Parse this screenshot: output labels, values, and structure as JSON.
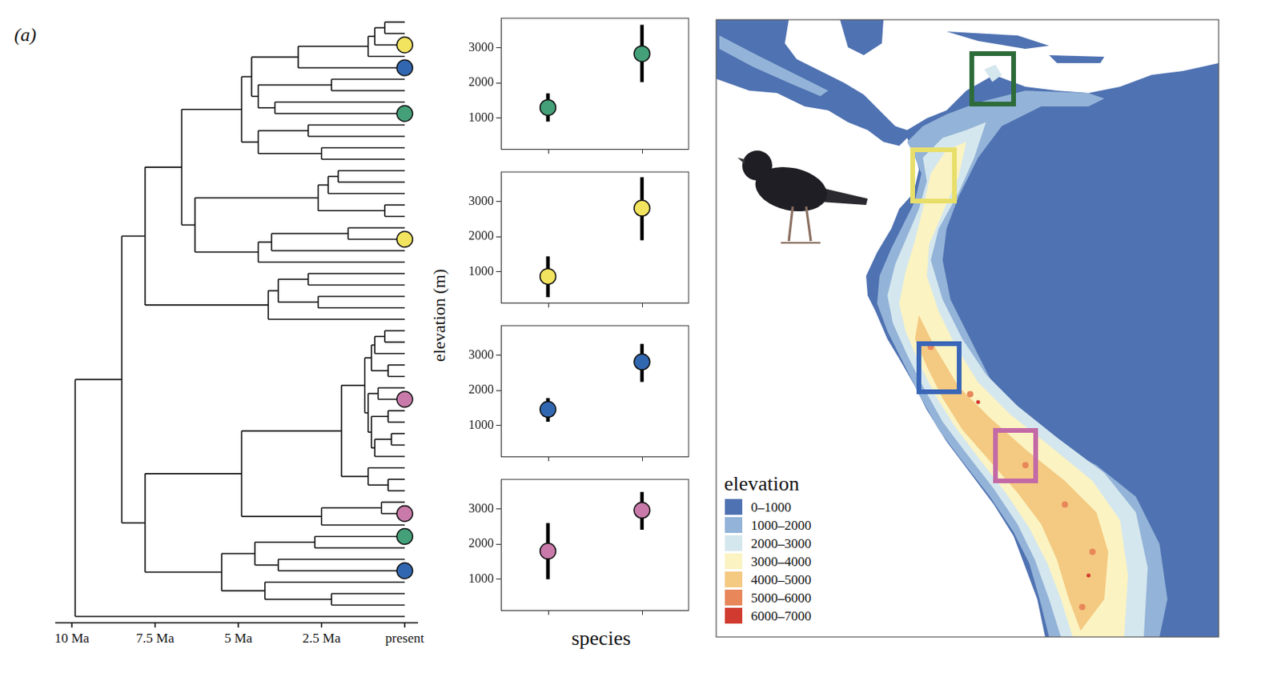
{
  "panel_label": "(a)",
  "tree": {
    "xlim": [
      10.5,
      -0.4
    ],
    "xticks": [
      {
        "value": 10,
        "label": "10 Ma"
      },
      {
        "value": 7.5,
        "label": "7.5 Ma"
      },
      {
        "value": 5,
        "label": "5 Ma"
      },
      {
        "value": 2.5,
        "label": "2.5 Ma"
      },
      {
        "value": 0,
        "label": "present"
      }
    ],
    "root": {
      "age": 9.9,
      "children": [
        {
          "age": 8.5,
          "children": [
            {
              "age": 7.8,
              "children": [
                {
                  "age": 6.7,
                  "children": [
                    {
                      "age": 4.9,
                      "children": [
                        {
                          "age": 4.6,
                          "children": [
                            {
                              "age": 3.2,
                              "children": [
                                {
                                  "age": 1.1,
                                  "children": [
                                    {
                                      "age": 0.9,
                                      "children": [
                                        {
                                          "age": 0.6,
                                          "children": [
                                            {
                                              "age": 0
                                            },
                                            {
                                              "age": 0
                                            }
                                          ]
                                        },
                                        {
                                          "age": 0,
                                          "color": "#f3e45f"
                                        }
                                      ]
                                    },
                                    {
                                      "age": 0
                                    }
                                  ]
                                },
                                {
                                  "age": 0,
                                  "color": "#3167b1"
                                }
                              ]
                            },
                            {
                              "age": 4.4,
                              "children": [
                                {
                                  "age": 2.2,
                                  "children": [
                                    {
                                      "age": 0
                                    },
                                    {
                                      "age": 0
                                    }
                                  ]
                                },
                                {
                                  "age": 3.9,
                                  "children": [
                                    {
                                      "age": 0
                                    },
                                    {
                                      "age": 0,
                                      "color": "#44a079"
                                    }
                                  ]
                                }
                              ]
                            }
                          ]
                        },
                        {
                          "age": 4.4,
                          "children": [
                            {
                              "age": 2.9,
                              "children": [
                                {
                                  "age": 0
                                },
                                {
                                  "age": 0
                                }
                              ]
                            },
                            {
                              "age": 2.5,
                              "children": [
                                {
                                  "age": 0
                                },
                                {
                                  "age": 0
                                }
                              ]
                            }
                          ]
                        }
                      ]
                    },
                    {
                      "age": 6.3,
                      "children": [
                        {
                          "age": 2.6,
                          "children": [
                            {
                              "age": 2.3,
                              "children": [
                                {
                                  "age": 2.0,
                                  "children": [
                                    {
                                      "age": 0
                                    },
                                    {
                                      "age": 0
                                    }
                                  ]
                                },
                                {
                                  "age": 0
                                }
                              ]
                            },
                            {
                              "age": 0.6,
                              "children": [
                                {
                                  "age": 0
                                },
                                {
                                  "age": 0
                                }
                              ]
                            }
                          ]
                        },
                        {
                          "age": 4.4,
                          "children": [
                            {
                              "age": 4.0,
                              "children": [
                                {
                                  "age": 1.7,
                                  "children": [
                                    {
                                      "age": 0
                                    },
                                    {
                                      "age": 0,
                                      "color": "#f3e45f"
                                    }
                                  ]
                                },
                                {
                                  "age": 0
                                }
                              ]
                            },
                            {
                              "age": 0
                            }
                          ]
                        }
                      ]
                    }
                  ]
                },
                {
                  "age": 4.1,
                  "children": [
                    {
                      "age": 3.8,
                      "children": [
                        {
                          "age": 2.9,
                          "children": [
                            {
                              "age": 0
                            },
                            {
                              "age": 0
                            }
                          ]
                        },
                        {
                          "age": 2.6,
                          "children": [
                            {
                              "age": 0
                            },
                            {
                              "age": 0
                            }
                          ]
                        }
                      ]
                    },
                    {
                      "age": 0
                    }
                  ]
                }
              ]
            },
            {
              "age": 7.8,
              "children": [
                {
                  "age": 4.9,
                  "children": [
                    {
                      "age": 1.9,
                      "children": [
                        {
                          "age": 1.2,
                          "children": [
                            {
                              "age": 1.0,
                              "children": [
                                {
                                  "age": 0.9,
                                  "children": [
                                    {
                                      "age": 0.6,
                                      "children": [
                                        {
                                          "age": 0
                                        },
                                        {
                                          "age": 0
                                        }
                                      ]
                                    },
                                    {
                                      "age": 0
                                    }
                                  ]
                                },
                                {
                                  "age": 0.5,
                                  "children": [
                                    {
                                      "age": 0
                                    },
                                    {
                                      "age": 0
                                    }
                                  ]
                                }
                              ]
                            },
                            {
                              "age": 1.1,
                              "children": [
                                {
                                  "age": 0.8,
                                  "children": [
                                    {
                                      "age": 0
                                    },
                                    {
                                      "age": 0,
                                      "color": "#c97aaa"
                                    }
                                  ]
                                },
                                {
                                  "age": 1.0,
                                  "children": [
                                    {
                                      "age": 0.5,
                                      "children": [
                                        {
                                          "age": 0
                                        },
                                        {
                                          "age": 0
                                        }
                                      ]
                                    },
                                    {
                                      "age": 0.9,
                                      "children": [
                                        {
                                          "age": 0.4,
                                          "children": [
                                            {
                                              "age": 0
                                            },
                                            {
                                              "age": 0
                                            }
                                          ]
                                        },
                                        {
                                          "age": 0
                                        }
                                      ]
                                    }
                                  ]
                                }
                              ]
                            }
                          ]
                        },
                        {
                          "age": 1.1,
                          "children": [
                            {
                              "age": 0
                            },
                            {
                              "age": 0.5,
                              "children": [
                                {
                                  "age": 0
                                },
                                {
                                  "age": 0
                                }
                              ]
                            }
                          ]
                        }
                      ]
                    },
                    {
                      "age": 2.5,
                      "children": [
                        {
                          "age": 0.7,
                          "children": [
                            {
                              "age": 0
                            },
                            {
                              "age": 0,
                              "color": "#c97aaa"
                            }
                          ]
                        },
                        {
                          "age": 0
                        }
                      ]
                    }
                  ]
                },
                {
                  "age": 5.5,
                  "children": [
                    {
                      "age": 4.5,
                      "children": [
                        {
                          "age": 2.7,
                          "children": [
                            {
                              "age": 0,
                              "color": "#44a079"
                            },
                            {
                              "age": 0
                            }
                          ]
                        },
                        {
                          "age": 3.8,
                          "children": [
                            {
                              "age": 0
                            },
                            {
                              "age": 0,
                              "color": "#3167b1"
                            }
                          ]
                        }
                      ]
                    },
                    {
                      "age": 4.2,
                      "children": [
                        {
                          "age": 0
                        },
                        {
                          "age": 2.2,
                          "children": [
                            {
                              "age": 0
                            },
                            {
                              "age": 0
                            }
                          ]
                        }
                      ]
                    }
                  ]
                }
              ]
            }
          ]
        },
        {
          "age": 0
        }
      ]
    }
  },
  "panels_axis_titles": {
    "y": "elevation (m)",
    "x": "species"
  },
  "chart_data": [
    {
      "type": "scatter",
      "categories": [
        null,
        null
      ],
      "values": [
        1300,
        2830
      ],
      "error_low": [
        900,
        2020
      ],
      "error_high": [
        1700,
        3650
      ],
      "color": "#44a079",
      "ylim": [
        100,
        3850
      ],
      "yticks": [
        1000,
        2000,
        3000
      ],
      "grid": false,
      "tick_labels": "y"
    },
    {
      "type": "scatter",
      "categories": [
        null,
        null
      ],
      "values": [
        870,
        2810
      ],
      "error_low": [
        280,
        1900
      ],
      "error_high": [
        1440,
        3690
      ],
      "color": "#f3e45f",
      "ylim": [
        100,
        3850
      ],
      "yticks": [
        1000,
        2000,
        3000
      ],
      "grid": false,
      "tick_labels": "y"
    },
    {
      "type": "scatter",
      "categories": [
        null,
        null
      ],
      "values": [
        1460,
        2810
      ],
      "error_low": [
        1110,
        2240
      ],
      "error_high": [
        1780,
        3320
      ],
      "color": "#3167b1",
      "ylim": [
        100,
        3850
      ],
      "yticks": [
        1000,
        2000,
        3000
      ],
      "grid": false,
      "tick_labels": "y"
    },
    {
      "type": "scatter",
      "categories": [
        null,
        null
      ],
      "values": [
        1800,
        2960
      ],
      "error_low": [
        1000,
        2410
      ],
      "error_high": [
        2600,
        3480
      ],
      "color": "#c97aaa",
      "ylim": [
        100,
        3850
      ],
      "yticks": [
        1000,
        2000,
        3000
      ],
      "grid": false,
      "tick_labels": "y"
    }
  ],
  "map": {
    "legend_title": "elevation",
    "classes": [
      {
        "label": "0–1000",
        "color": "#4f72b2"
      },
      {
        "label": "1000–2000",
        "color": "#93b3d8"
      },
      {
        "label": "2000–3000",
        "color": "#d5e7ee"
      },
      {
        "label": "3000–4000",
        "color": "#fbf3c2"
      },
      {
        "label": "4000–5000",
        "color": "#f4c981"
      },
      {
        "label": "5000–6000",
        "color": "#e8875a"
      },
      {
        "label": "6000–7000",
        "color": "#d13b2f"
      }
    ]
  }
}
